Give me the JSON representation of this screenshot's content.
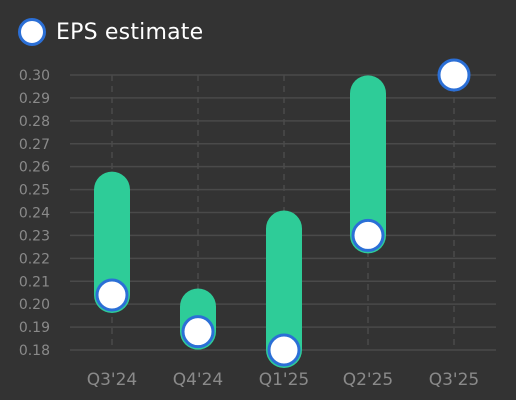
{
  "legend": {
    "label": "EPS estimate"
  },
  "colors": {
    "background": "#333333",
    "grid": "#4a4a4a",
    "tick_text": "#8a8a8a",
    "range_bar": "#2ecc98",
    "marker_fill": "#ffffff",
    "marker_stroke": "#2b6fd6"
  },
  "chart_data": {
    "type": "bar",
    "categories": [
      "Q3'24",
      "Q4'24",
      "Q1'25",
      "Q2'25",
      "Q3'25"
    ],
    "series": [
      {
        "name": "EPS estimate",
        "values": [
          0.204,
          0.188,
          0.18,
          0.23,
          0.3
        ]
      }
    ],
    "ranges": [
      [
        0.204,
        0.25
      ],
      [
        0.188,
        0.199
      ],
      [
        0.18,
        0.233
      ],
      [
        0.23,
        0.292
      ],
      null
    ],
    "y_ticks": [
      "0.18",
      "0.19",
      "0.20",
      "0.21",
      "0.22",
      "0.23",
      "0.24",
      "0.25",
      "0.26",
      "0.27",
      "0.28",
      "0.29",
      "0.30"
    ],
    "ylim": [
      0.18,
      0.3
    ],
    "grid": true,
    "legend_position": "top-left",
    "title": "",
    "xlabel": "",
    "ylabel": ""
  }
}
